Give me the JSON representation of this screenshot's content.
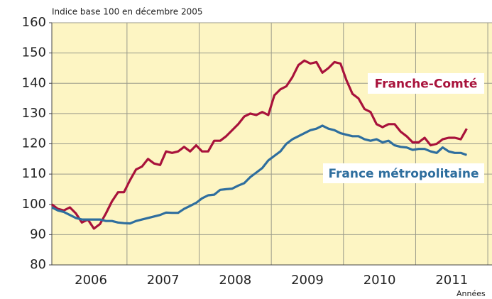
{
  "chart_data": {
    "type": "line",
    "subtitle": "Indice base 100 en décembre 2005",
    "x_label": "Années",
    "xlim": [
      0,
      73.2
    ],
    "xticks": [
      {
        "value": 6.5,
        "label": "2006"
      },
      {
        "value": 18.5,
        "label": "2007"
      },
      {
        "value": 30.5,
        "label": "2008"
      },
      {
        "value": 42.5,
        "label": "2009"
      },
      {
        "value": 54.5,
        "label": "2010"
      },
      {
        "value": 66.5,
        "label": "2011"
      }
    ],
    "ylim": [
      80,
      160
    ],
    "yticks": [
      80,
      90,
      100,
      110,
      120,
      130,
      140,
      150,
      160
    ],
    "grid": true,
    "background": "#fdf5c3",
    "series": [
      {
        "name": "Franche-Comté",
        "color": "#a8123b",
        "values": [
          100,
          98.5,
          98,
          99,
          97,
          94,
          95,
          92,
          93.5,
          97,
          101,
          104,
          104,
          108,
          111.5,
          112.5,
          115,
          113.5,
          113,
          117.5,
          117,
          117.5,
          119,
          117.5,
          119.5,
          117.5,
          117.5,
          121,
          121,
          122.5,
          124.5,
          126.5,
          129,
          130,
          129.5,
          130.5,
          129.5,
          136,
          138,
          139,
          142,
          146,
          147.5,
          146.5,
          147,
          143.5,
          145,
          147,
          146.5,
          141,
          136.5,
          135,
          131.5,
          130.5,
          126.5,
          125.5,
          126.5,
          126.5,
          124,
          122.5,
          120.5,
          120.5,
          122,
          119.5,
          120,
          121.5,
          122,
          122,
          121.5,
          125
        ]
      },
      {
        "name": "France métropolitaine",
        "color": "#2e6e9e",
        "values": [
          99,
          98,
          97.5,
          96.5,
          95.5,
          95,
          95,
          95,
          95,
          94.5,
          94.5,
          94,
          93.8,
          93.7,
          94.5,
          95,
          95.5,
          96,
          96.5,
          97.3,
          97.2,
          97.2,
          98.5,
          99.5,
          100.5,
          102,
          103,
          103.2,
          104.8,
          105,
          105.2,
          106.2,
          107,
          109,
          110.5,
          112,
          114.5,
          116,
          117.5,
          120,
          121.5,
          122.5,
          123.5,
          124.5,
          125,
          126,
          125,
          124.5,
          123.5,
          123,
          122.5,
          122.5,
          121.5,
          121,
          121.5,
          120.5,
          121,
          119.5,
          119,
          118.8,
          118,
          118.3,
          118.3,
          117.5,
          117,
          118.8,
          117.5,
          117,
          117,
          116.3
        ]
      }
    ]
  }
}
